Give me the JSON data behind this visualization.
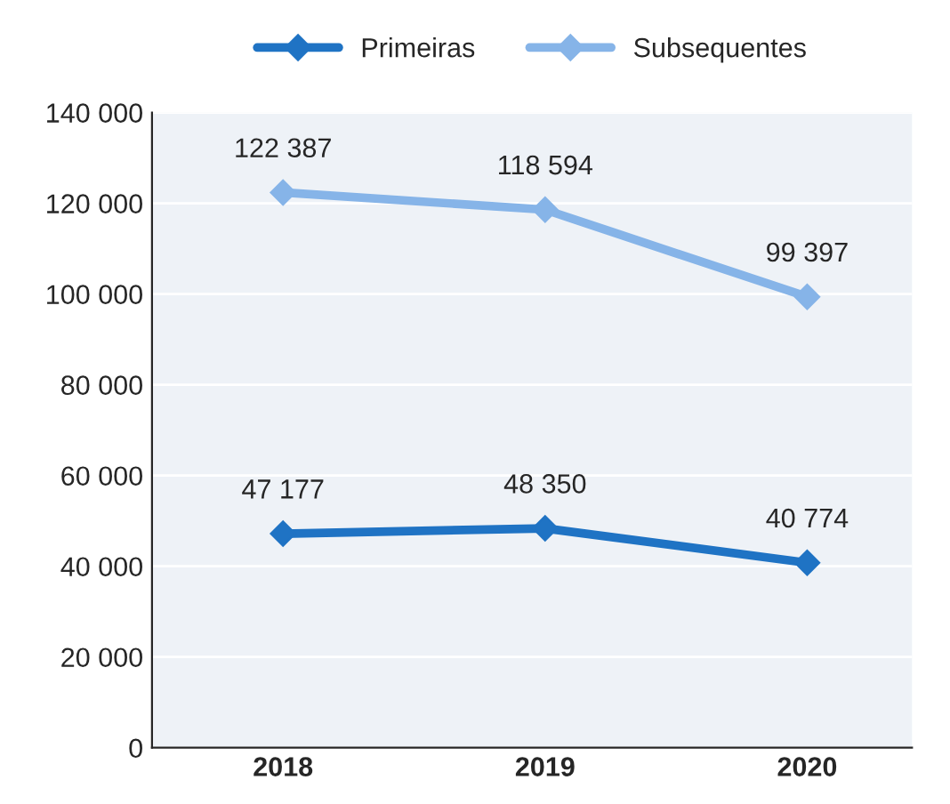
{
  "chart_data": {
    "type": "line",
    "categories": [
      "2018",
      "2019",
      "2020"
    ],
    "series": [
      {
        "name": "Primeiras",
        "color": "#1f73c4",
        "values": [
          47177,
          48350,
          40774
        ],
        "value_labels": [
          "47 177",
          "48 350",
          "40 774"
        ]
      },
      {
        "name": "Subsequentes",
        "color": "#86b4e8",
        "values": [
          122387,
          118594,
          99397
        ],
        "value_labels": [
          "122 387",
          "118 594",
          "99 397"
        ]
      }
    ],
    "ylim": [
      0,
      140000
    ],
    "yticks": [
      {
        "value": 0,
        "label": "0"
      },
      {
        "value": 20000,
        "label": "20 000"
      },
      {
        "value": 40000,
        "label": "40 000"
      },
      {
        "value": 60000,
        "label": "60 000"
      },
      {
        "value": 80000,
        "label": "80 000"
      },
      {
        "value": 100000,
        "label": "100 000"
      },
      {
        "value": 120000,
        "label": "120 000"
      },
      {
        "value": 140000,
        "label": "140 000"
      }
    ],
    "grid": "y",
    "legend": "top",
    "marker": "diamond",
    "line_style": "solid"
  }
}
